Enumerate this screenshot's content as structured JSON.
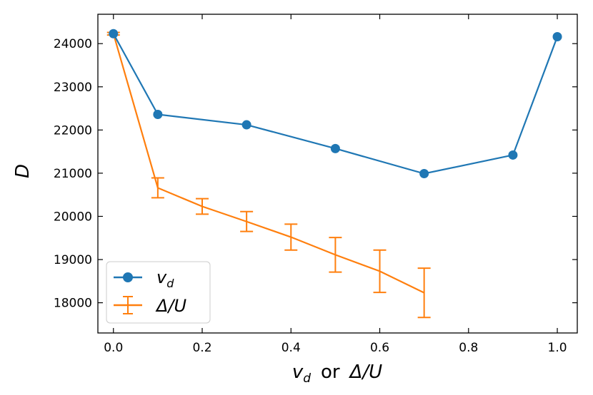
{
  "chart_data": {
    "type": "line",
    "xlabel": "v_d or Δ/U",
    "xlabel_parts": {
      "var1": "v",
      "sub1": "d",
      "mid": "or",
      "var2": "Δ/U"
    },
    "ylabel": "D",
    "xlim": [
      -0.035,
      1.045
    ],
    "ylim": [
      17300,
      24680
    ],
    "xticks": [
      0.0,
      0.2,
      0.4,
      0.6,
      0.8,
      1.0
    ],
    "xtick_labels": [
      "0.0",
      "0.2",
      "0.4",
      "0.6",
      "0.8",
      "1.0"
    ],
    "yticks": [
      18000,
      19000,
      20000,
      21000,
      22000,
      23000,
      24000
    ],
    "ytick_labels": [
      "18000",
      "19000",
      "20000",
      "21000",
      "22000",
      "23000",
      "24000"
    ],
    "legend_position": "lower-left",
    "series": [
      {
        "name": "v_d",
        "label_main": "v",
        "label_sub": "d",
        "color": "#1f77b4",
        "marker": "circle",
        "x": [
          0.0,
          0.1,
          0.3,
          0.5,
          0.7,
          0.9,
          1.0
        ],
        "y": [
          24230,
          22360,
          22120,
          21570,
          20990,
          21420,
          24160
        ]
      },
      {
        "name": "Δ/U",
        "label_main": "Δ/U",
        "color": "#ff7f0e",
        "marker": "errorbar",
        "x": [
          0.0,
          0.1,
          0.2,
          0.3,
          0.4,
          0.5,
          0.6,
          0.7
        ],
        "y": [
          24230,
          20660,
          20230,
          19880,
          19520,
          19110,
          18730,
          18230
        ],
        "err": [
          30,
          230,
          180,
          230,
          300,
          400,
          490,
          570
        ]
      }
    ]
  }
}
